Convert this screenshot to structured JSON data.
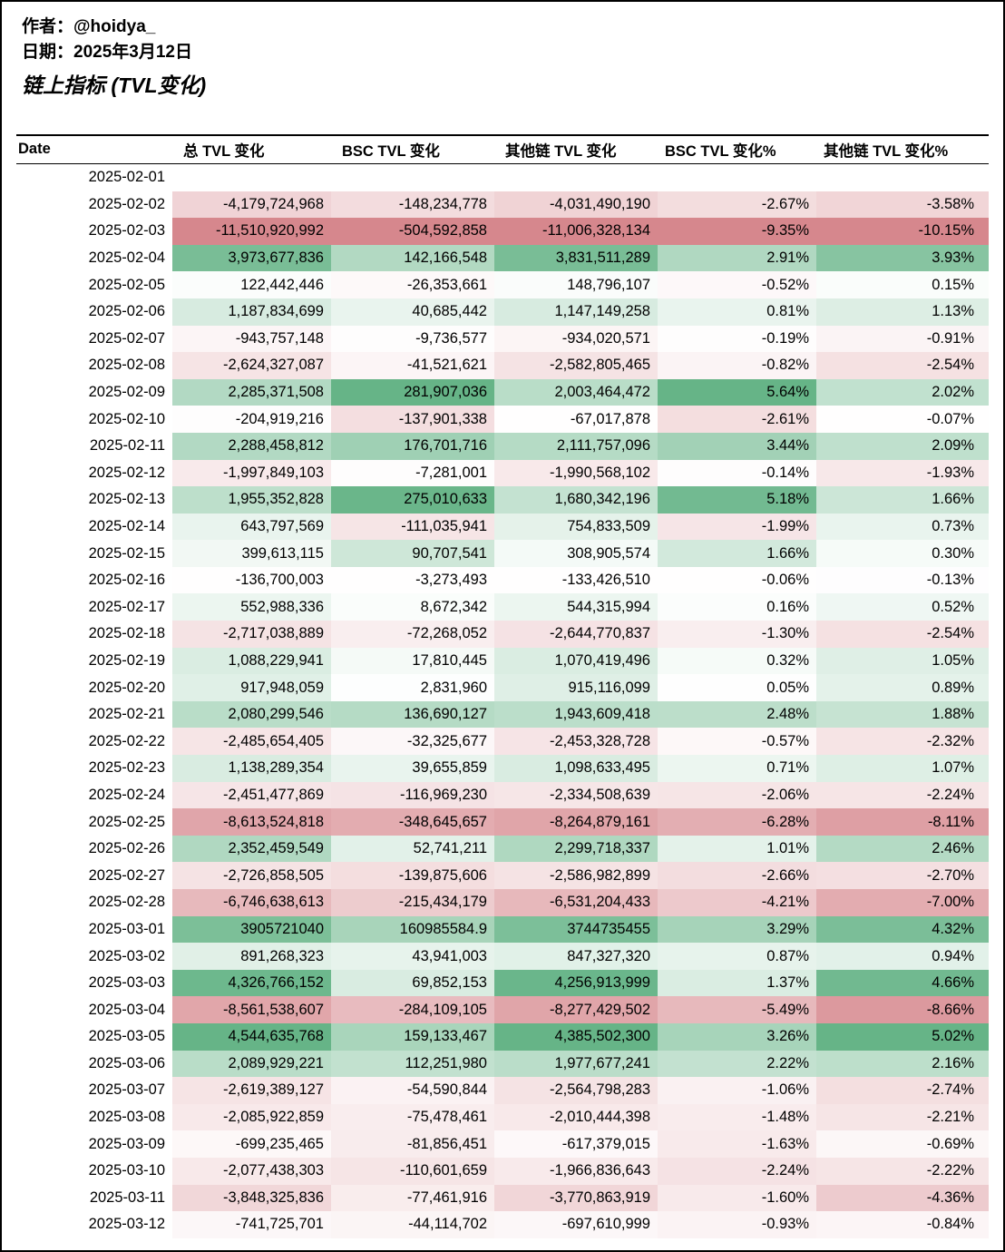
{
  "header": {
    "author": "作者：@hoidya_",
    "date": "日期：2025年3月12日",
    "title": "链上指标 (TVL变化)"
  },
  "colors": {
    "positive_end": "#66b487",
    "negative_end": "#d6878d",
    "neutral": "#ffffff"
  },
  "chart_data": {
    "type": "table",
    "title": "链上指标 (TVL变化)",
    "columns": [
      "Date",
      "总 TVL 变化",
      "BSC TVL 变化",
      "其他链 TVL 变化",
      "BSC TVL 变化%",
      "其他链 TVL 变化%"
    ],
    "rows": [
      [
        "2025-02-01",
        "",
        "",
        "",
        "",
        ""
      ],
      [
        "2025-02-02",
        "-4,179,724,968",
        "-148,234,778",
        "-4,031,490,190",
        "-2.67%",
        "-3.58%"
      ],
      [
        "2025-02-03",
        "-11,510,920,992",
        "-504,592,858",
        "-11,006,328,134",
        "-9.35%",
        "-10.15%"
      ],
      [
        "2025-02-04",
        "3,973,677,836",
        "142,166,548",
        "3,831,511,289",
        "2.91%",
        "3.93%"
      ],
      [
        "2025-02-05",
        "122,442,446",
        "-26,353,661",
        "148,796,107",
        "-0.52%",
        "0.15%"
      ],
      [
        "2025-02-06",
        "1,187,834,699",
        "40,685,442",
        "1,147,149,258",
        "0.81%",
        "1.13%"
      ],
      [
        "2025-02-07",
        "-943,757,148",
        "-9,736,577",
        "-934,020,571",
        "-0.19%",
        "-0.91%"
      ],
      [
        "2025-02-08",
        "-2,624,327,087",
        "-41,521,621",
        "-2,582,805,465",
        "-0.82%",
        "-2.54%"
      ],
      [
        "2025-02-09",
        "2,285,371,508",
        "281,907,036",
        "2,003,464,472",
        "5.64%",
        "2.02%"
      ],
      [
        "2025-02-10",
        "-204,919,216",
        "-137,901,338",
        "-67,017,878",
        "-2.61%",
        "-0.07%"
      ],
      [
        "2025-02-11",
        "2,288,458,812",
        "176,701,716",
        "2,111,757,096",
        "3.44%",
        "2.09%"
      ],
      [
        "2025-02-12",
        "-1,997,849,103",
        "-7,281,001",
        "-1,990,568,102",
        "-0.14%",
        "-1.93%"
      ],
      [
        "2025-02-13",
        "1,955,352,828",
        "275,010,633",
        "1,680,342,196",
        "5.18%",
        "1.66%"
      ],
      [
        "2025-02-14",
        "643,797,569",
        "-111,035,941",
        "754,833,509",
        "-1.99%",
        "0.73%"
      ],
      [
        "2025-02-15",
        "399,613,115",
        "90,707,541",
        "308,905,574",
        "1.66%",
        "0.30%"
      ],
      [
        "2025-02-16",
        "-136,700,003",
        "-3,273,493",
        "-133,426,510",
        "-0.06%",
        "-0.13%"
      ],
      [
        "2025-02-17",
        "552,988,336",
        "8,672,342",
        "544,315,994",
        "0.16%",
        "0.52%"
      ],
      [
        "2025-02-18",
        "-2,717,038,889",
        "-72,268,052",
        "-2,644,770,837",
        "-1.30%",
        "-2.54%"
      ],
      [
        "2025-02-19",
        "1,088,229,941",
        "17,810,445",
        "1,070,419,496",
        "0.32%",
        "1.05%"
      ],
      [
        "2025-02-20",
        "917,948,059",
        "2,831,960",
        "915,116,099",
        "0.05%",
        "0.89%"
      ],
      [
        "2025-02-21",
        "2,080,299,546",
        "136,690,127",
        "1,943,609,418",
        "2.48%",
        "1.88%"
      ],
      [
        "2025-02-22",
        "-2,485,654,405",
        "-32,325,677",
        "-2,453,328,728",
        "-0.57%",
        "-2.32%"
      ],
      [
        "2025-02-23",
        "1,138,289,354",
        "39,655,859",
        "1,098,633,495",
        "0.71%",
        "1.07%"
      ],
      [
        "2025-02-24",
        "-2,451,477,869",
        "-116,969,230",
        "-2,334,508,639",
        "-2.06%",
        "-2.24%"
      ],
      [
        "2025-02-25",
        "-8,613,524,818",
        "-348,645,657",
        "-8,264,879,161",
        "-6.28%",
        "-8.11%"
      ],
      [
        "2025-02-26",
        "2,352,459,549",
        "52,741,211",
        "2,299,718,337",
        "1.01%",
        "2.46%"
      ],
      [
        "2025-02-27",
        "-2,726,858,505",
        "-139,875,606",
        "-2,586,982,899",
        "-2.66%",
        "-2.70%"
      ],
      [
        "2025-02-28",
        "-6,746,638,613",
        "-215,434,179",
        "-6,531,204,433",
        "-4.21%",
        "-7.00%"
      ],
      [
        "2025-03-01",
        "3905721040",
        "160985584.9",
        "3744735455",
        "3.29%",
        "4.32%"
      ],
      [
        "2025-03-02",
        "891,268,323",
        "43,941,003",
        "847,327,320",
        "0.87%",
        "0.94%"
      ],
      [
        "2025-03-03",
        "4,326,766,152",
        "69,852,153",
        "4,256,913,999",
        "1.37%",
        "4.66%"
      ],
      [
        "2025-03-04",
        "-8,561,538,607",
        "-284,109,105",
        "-8,277,429,502",
        "-5.49%",
        "-8.66%"
      ],
      [
        "2025-03-05",
        "4,544,635,768",
        "159,133,467",
        "4,385,502,300",
        "3.26%",
        "5.02%"
      ],
      [
        "2025-03-06",
        "2,089,929,221",
        "112,251,980",
        "1,977,677,241",
        "2.22%",
        "2.16%"
      ],
      [
        "2025-03-07",
        "-2,619,389,127",
        "-54,590,844",
        "-2,564,798,283",
        "-1.06%",
        "-2.74%"
      ],
      [
        "2025-03-08",
        "-2,085,922,859",
        "-75,478,461",
        "-2,010,444,398",
        "-1.48%",
        "-2.21%"
      ],
      [
        "2025-03-09",
        "-699,235,465",
        "-81,856,451",
        "-617,379,015",
        "-1.63%",
        "-0.69%"
      ],
      [
        "2025-03-10",
        "-2,077,438,303",
        "-110,601,659",
        "-1,966,836,643",
        "-2.24%",
        "-2.22%"
      ],
      [
        "2025-03-11",
        "-3,848,325,836",
        "-77,461,916",
        "-3,770,863,919",
        "-1.60%",
        "-4.36%"
      ],
      [
        "2025-03-12",
        "-741,725,701",
        "-44,114,702",
        "-697,610,999",
        "-0.93%",
        "-0.84%"
      ]
    ]
  }
}
